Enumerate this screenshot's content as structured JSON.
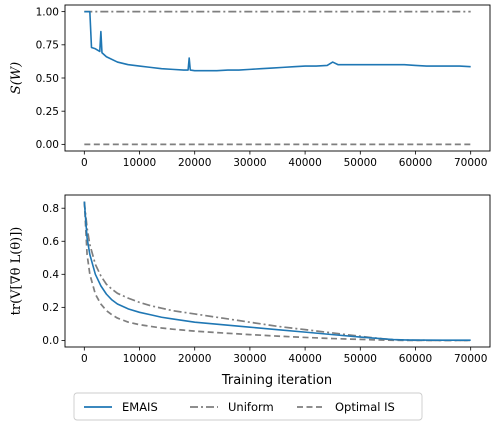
{
  "chart_data": [
    {
      "type": "line",
      "ylabel": "S(W)",
      "xlim": [
        -3500,
        73500
      ],
      "ylim": [
        -0.05,
        1.05
      ],
      "xticks": [
        0,
        10000,
        20000,
        30000,
        40000,
        50000,
        60000,
        70000
      ],
      "xtick_labels": [
        "0",
        "10000",
        "20000",
        "30000",
        "40000",
        "50000",
        "60000",
        "70000"
      ],
      "yticks": [
        0.0,
        0.25,
        0.5,
        0.75,
        1.0
      ],
      "ytick_labels": [
        "0.00",
        "0.25",
        "0.50",
        "0.75",
        "1.00"
      ],
      "grid": false,
      "series": [
        {
          "name": "EMAIS",
          "color": "#1f77b4",
          "style": "solid",
          "x": [
            0,
            1000,
            1300,
            2000,
            2800,
            3000,
            3200,
            4000,
            6000,
            8000,
            10000,
            12000,
            14000,
            16000,
            18000,
            18800,
            19000,
            19200,
            20000,
            22000,
            24000,
            26000,
            28000,
            30000,
            32000,
            34000,
            36000,
            38000,
            40000,
            42000,
            44000,
            45000,
            46000,
            48000,
            50000,
            52000,
            54000,
            56000,
            58000,
            60000,
            62000,
            64000,
            66000,
            68000,
            70000
          ],
          "y": [
            1.0,
            1.0,
            0.73,
            0.72,
            0.7,
            0.85,
            0.69,
            0.66,
            0.62,
            0.6,
            0.59,
            0.58,
            0.57,
            0.565,
            0.56,
            0.56,
            0.65,
            0.56,
            0.555,
            0.555,
            0.555,
            0.56,
            0.56,
            0.565,
            0.57,
            0.575,
            0.58,
            0.585,
            0.59,
            0.59,
            0.595,
            0.62,
            0.6,
            0.6,
            0.6,
            0.6,
            0.6,
            0.6,
            0.6,
            0.595,
            0.59,
            0.59,
            0.59,
            0.59,
            0.585
          ]
        },
        {
          "name": "Uniform",
          "color": "#7f7f7f",
          "style": "dashdot",
          "x": [
            0,
            70000
          ],
          "y": [
            1.0,
            1.0
          ]
        },
        {
          "name": "Optimal IS",
          "color": "#7f7f7f",
          "style": "dashed",
          "x": [
            0,
            70000
          ],
          "y": [
            0.0,
            0.0
          ]
        }
      ]
    },
    {
      "type": "line",
      "xlabel": "Training iteration",
      "ylabel": "tr(V[∇θ L(θ)])",
      "xlim": [
        -3500,
        73500
      ],
      "ylim": [
        -0.04,
        0.88
      ],
      "xticks": [
        0,
        10000,
        20000,
        30000,
        40000,
        50000,
        60000,
        70000
      ],
      "xtick_labels": [
        "0",
        "10000",
        "20000",
        "30000",
        "40000",
        "50000",
        "60000",
        "70000"
      ],
      "yticks": [
        0.0,
        0.2,
        0.4,
        0.6,
        0.8
      ],
      "ytick_labels": [
        "0.0",
        "0.2",
        "0.4",
        "0.6",
        "0.8"
      ],
      "grid": false,
      "series": [
        {
          "name": "EMAIS",
          "color": "#1f77b4",
          "style": "solid",
          "x": [
            0,
            500,
            1000,
            2000,
            3000,
            4000,
            5000,
            6000,
            8000,
            10000,
            12000,
            14000,
            16000,
            18000,
            20000,
            25000,
            30000,
            35000,
            40000,
            45000,
            50000,
            52000,
            54000,
            56000,
            58000,
            60000,
            65000,
            70000
          ],
          "y": [
            0.84,
            0.62,
            0.52,
            0.4,
            0.33,
            0.28,
            0.245,
            0.22,
            0.19,
            0.17,
            0.155,
            0.14,
            0.13,
            0.12,
            0.11,
            0.095,
            0.08,
            0.065,
            0.05,
            0.035,
            0.02,
            0.015,
            0.01,
            0.005,
            0.003,
            0.002,
            0.001,
            0.001
          ]
        },
        {
          "name": "Uniform",
          "color": "#7f7f7f",
          "style": "dashdot",
          "x": [
            0,
            500,
            1000,
            2000,
            3000,
            4000,
            5000,
            6000,
            8000,
            10000,
            12000,
            14000,
            16000,
            18000,
            20000,
            25000,
            30000,
            35000,
            40000,
            45000,
            50000,
            52000,
            54000,
            56000,
            58000,
            60000,
            65000,
            70000
          ],
          "y": [
            0.84,
            0.68,
            0.58,
            0.46,
            0.39,
            0.34,
            0.31,
            0.285,
            0.255,
            0.23,
            0.21,
            0.195,
            0.18,
            0.17,
            0.16,
            0.135,
            0.11,
            0.085,
            0.065,
            0.045,
            0.025,
            0.017,
            0.01,
            0.004,
            0.002,
            0.001,
            0.0,
            0.0
          ]
        },
        {
          "name": "Optimal IS",
          "color": "#7f7f7f",
          "style": "dashed",
          "x": [
            0,
            500,
            1000,
            2000,
            3000,
            4000,
            5000,
            6000,
            8000,
            10000,
            12000,
            14000,
            16000,
            18000,
            20000,
            25000,
            30000,
            35000,
            40000,
            45000,
            50000,
            52000,
            54000,
            56000,
            58000,
            60000,
            65000,
            70000
          ],
          "y": [
            0.84,
            0.52,
            0.4,
            0.28,
            0.22,
            0.18,
            0.155,
            0.135,
            0.11,
            0.095,
            0.085,
            0.075,
            0.068,
            0.062,
            0.056,
            0.045,
            0.035,
            0.026,
            0.018,
            0.011,
            0.006,
            0.004,
            0.002,
            0.001,
            0.0,
            0.0,
            0.0,
            0.0
          ]
        }
      ]
    }
  ],
  "legend": {
    "placement": "bottom-center",
    "entries": [
      {
        "label": "EMAIS",
        "color": "#1f77b4",
        "style": "solid"
      },
      {
        "label": "Uniform",
        "color": "#7f7f7f",
        "style": "dashdot"
      },
      {
        "label": "Optimal IS",
        "color": "#7f7f7f",
        "style": "dashed"
      }
    ]
  }
}
